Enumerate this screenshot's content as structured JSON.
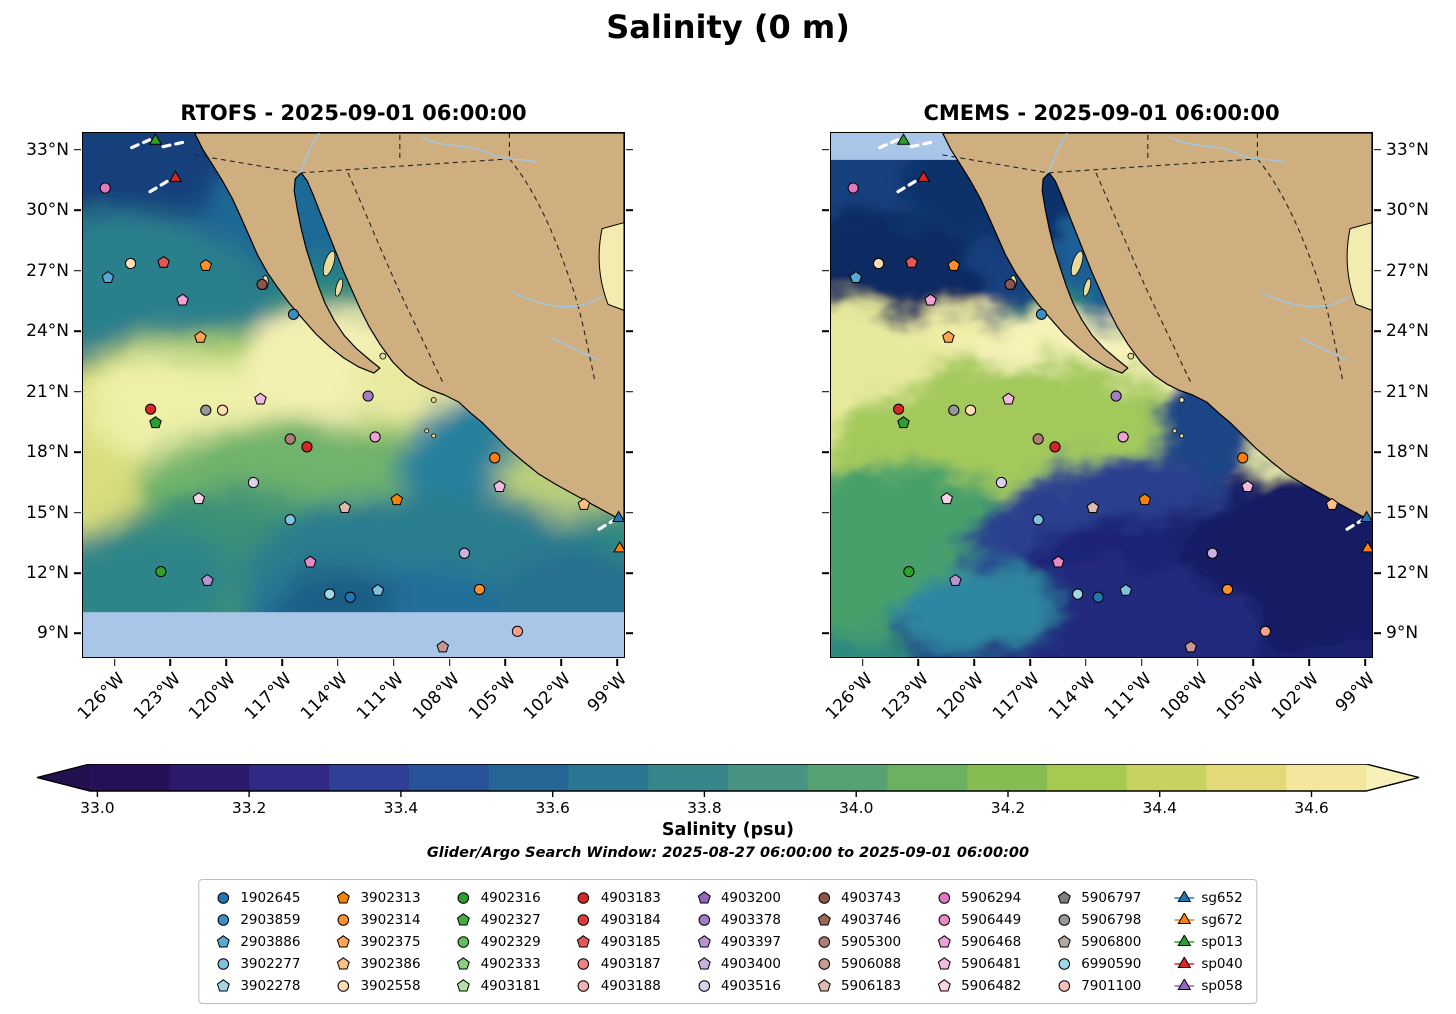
{
  "figure": {
    "title": "Salinity (0 m)"
  },
  "panels": [
    {
      "id": "rtofs",
      "title": "RTOFS - 2025-09-01 06:00:00",
      "lat_label_side": "left"
    },
    {
      "id": "cmems",
      "title": "CMEMS - 2025-09-01 06:00:00",
      "lat_label_side": "right"
    }
  ],
  "axes": {
    "lat_ticks": [
      "33°N",
      "30°N",
      "27°N",
      "24°N",
      "21°N",
      "18°N",
      "15°N",
      "12°N",
      "9°N"
    ],
    "lon_ticks": [
      "126°W",
      "123°W",
      "120°W",
      "117°W",
      "114°W",
      "111°W",
      "108°W",
      "105°W",
      "102°W",
      "99°W"
    ]
  },
  "colorbar": {
    "label": "Salinity (psu)",
    "ticks": [
      "33.0",
      "33.2",
      "33.4",
      "33.6",
      "33.8",
      "34.0",
      "34.2",
      "34.4",
      "34.6"
    ],
    "colors": [
      "#261158",
      "#2c1a6e",
      "#312a84",
      "#2f3e96",
      "#28539b",
      "#266697",
      "#2b7793",
      "#37868c",
      "#469481",
      "#57a273",
      "#6cb062",
      "#86bd53",
      "#a6c94f",
      "#c7d25f",
      "#e2da78",
      "#f2e79c"
    ],
    "tip_left": "#23104f",
    "tip_right": "#f7f0b8"
  },
  "search_window": "Glider/Argo Search Window: 2025-08-27 06:00:00 to 2025-09-01 06:00:00",
  "chart_data": {
    "type": "heatmap",
    "title": "Salinity (0 m)",
    "variable": "Salinity (psu)",
    "panels": [
      "RTOFS - 2025-09-01 06:00:00",
      "CMEMS - 2025-09-01 06:00:00"
    ],
    "lon_ticks_deg_w": [
      126,
      123,
      120,
      117,
      114,
      111,
      108,
      105,
      102,
      99
    ],
    "lat_ticks_deg_n": [
      33,
      30,
      27,
      24,
      21,
      18,
      15,
      12,
      9
    ],
    "colorbar_ticks": [
      33.0,
      33.2,
      33.4,
      33.6,
      33.8,
      34.0,
      34.2,
      34.4,
      34.6
    ],
    "colorbar_range_psu": [
      32.9,
      34.7
    ],
    "search_window": [
      "2025-08-27 06:00:00",
      "2025-09-01 06:00:00"
    ]
  },
  "legend": {
    "columns": [
      {
        "items": [
          {
            "label": "1902645",
            "shape": "circle",
            "color": "#1f77b4"
          },
          {
            "label": "2903859",
            "shape": "circle",
            "color": "#3a8ec6"
          },
          {
            "label": "2903886",
            "shape": "pentagon",
            "color": "#57a9d4"
          },
          {
            "label": "3902277",
            "shape": "circle",
            "color": "#7fc2e0"
          },
          {
            "label": "3902278",
            "shape": "pentagon",
            "color": "#a6d4ec"
          }
        ]
      },
      {
        "items": [
          {
            "label": "3902313",
            "shape": "pentagon",
            "color": "#f5820b"
          },
          {
            "label": "3902314",
            "shape": "circle",
            "color": "#ff8f2a"
          },
          {
            "label": "3902375",
            "shape": "pentagon",
            "color": "#ffa64d"
          },
          {
            "label": "3902386",
            "shape": "pentagon",
            "color": "#ffc083"
          },
          {
            "label": "3902558",
            "shape": "circle",
            "color": "#ffddb3"
          }
        ]
      },
      {
        "items": [
          {
            "label": "4902316",
            "shape": "circle",
            "color": "#2ca02c"
          },
          {
            "label": "4902327",
            "shape": "pentagon",
            "color": "#44ad42"
          },
          {
            "label": "4902329",
            "shape": "circle",
            "color": "#63bd5f"
          },
          {
            "label": "4902333",
            "shape": "pentagon",
            "color": "#8ccf7f"
          },
          {
            "label": "4903181",
            "shape": "pentagon",
            "color": "#b4e0a4"
          }
        ]
      },
      {
        "items": [
          {
            "label": "4903183",
            "shape": "circle",
            "color": "#d62728"
          },
          {
            "label": "4903184",
            "shape": "circle",
            "color": "#da3b3c"
          },
          {
            "label": "4903185",
            "shape": "pentagon",
            "color": "#e25859"
          },
          {
            "label": "4903187",
            "shape": "circle",
            "color": "#ec8384"
          },
          {
            "label": "4903188",
            "shape": "circle",
            "color": "#f5b0b0"
          }
        ]
      },
      {
        "items": [
          {
            "label": "4903200",
            "shape": "pentagon",
            "color": "#9467bd"
          },
          {
            "label": "4903378",
            "shape": "circle",
            "color": "#a37cc7"
          },
          {
            "label": "4903397",
            "shape": "pentagon",
            "color": "#b595d2"
          },
          {
            "label": "4903400",
            "shape": "pentagon",
            "color": "#c9b2df"
          },
          {
            "label": "4903516",
            "shape": "circle",
            "color": "#ddd0ec"
          }
        ]
      },
      {
        "items": [
          {
            "label": "4903743",
            "shape": "circle",
            "color": "#8c564b"
          },
          {
            "label": "4903746",
            "shape": "pentagon",
            "color": "#9b675b"
          },
          {
            "label": "5905300",
            "shape": "circle",
            "color": "#b07d72"
          },
          {
            "label": "5906088",
            "shape": "circle",
            "color": "#c79990"
          },
          {
            "label": "5906183",
            "shape": "pentagon",
            "color": "#ddbbb1"
          }
        ]
      },
      {
        "items": [
          {
            "label": "5906294",
            "shape": "circle",
            "color": "#e377c2"
          },
          {
            "label": "5906449",
            "shape": "circle",
            "color": "#e88aca"
          },
          {
            "label": "5906468",
            "shape": "pentagon",
            "color": "#efa2d4"
          },
          {
            "label": "5906481",
            "shape": "pentagon",
            "color": "#f4bade"
          },
          {
            "label": "5906482",
            "shape": "pentagon",
            "color": "#fad2e9"
          }
        ]
      },
      {
        "items": [
          {
            "label": "5906797",
            "shape": "pentagon",
            "color": "#7f7f7f"
          },
          {
            "label": "5906798",
            "shape": "circle",
            "color": "#979797"
          },
          {
            "label": "5906800",
            "shape": "pentagon",
            "color": "#b3aaa1"
          },
          {
            "label": "6990590",
            "shape": "circle",
            "color": "#9edae5"
          },
          {
            "label": "7901100",
            "shape": "circle",
            "color": "#f7c1bb"
          }
        ]
      },
      {
        "items": [
          {
            "label": "sg652",
            "shape": "triangle",
            "color": "#1f77b4",
            "glider": true
          },
          {
            "label": "sg672",
            "shape": "triangle",
            "color": "#ff7f0e",
            "glider": true
          },
          {
            "label": "sp013",
            "shape": "triangle",
            "color": "#2ca02c",
            "glider": true
          },
          {
            "label": "sp040",
            "shape": "triangle",
            "color": "#d62728",
            "glider": true
          },
          {
            "label": "sp058",
            "shape": "triangle",
            "color": "#9467bd",
            "glider": true
          }
        ]
      }
    ]
  },
  "map_markers": [
    {
      "x": 13.4,
      "y": 1.5,
      "shape": "triangle",
      "color": "#2ca02c"
    },
    {
      "x": 17.1,
      "y": 8.6,
      "shape": "triangle",
      "color": "#d62728"
    },
    {
      "x": 4.1,
      "y": 10.5,
      "shape": "circle",
      "color": "#e377c2"
    },
    {
      "x": 8.8,
      "y": 24.9,
      "shape": "circle",
      "color": "#ffddb3"
    },
    {
      "x": 14.9,
      "y": 24.7,
      "shape": "pentagon",
      "color": "#e25859"
    },
    {
      "x": 22.7,
      "y": 25.3,
      "shape": "pentagon",
      "color": "#ff8f2a"
    },
    {
      "x": 4.6,
      "y": 27.6,
      "shape": "pentagon",
      "color": "#57a9d4"
    },
    {
      "x": 33.1,
      "y": 28.9,
      "shape": "circle",
      "color": "#8c564b"
    },
    {
      "x": 18.4,
      "y": 31.9,
      "shape": "pentagon",
      "color": "#efa2d4"
    },
    {
      "x": 38.9,
      "y": 34.6,
      "shape": "circle",
      "color": "#3a8ec6"
    },
    {
      "x": 21.7,
      "y": 39.0,
      "shape": "pentagon",
      "color": "#ffa64d"
    },
    {
      "x": 32.8,
      "y": 50.8,
      "shape": "pentagon",
      "color": "#f4bade"
    },
    {
      "x": 12.5,
      "y": 52.7,
      "shape": "circle",
      "color": "#d62728"
    },
    {
      "x": 22.7,
      "y": 52.9,
      "shape": "circle",
      "color": "#979797"
    },
    {
      "x": 25.8,
      "y": 52.9,
      "shape": "circle",
      "color": "#ffddb3"
    },
    {
      "x": 13.4,
      "y": 55.3,
      "shape": "pentagon",
      "color": "#2ca02c"
    },
    {
      "x": 52.7,
      "y": 50.2,
      "shape": "circle",
      "color": "#a37cc7"
    },
    {
      "x": 38.3,
      "y": 58.4,
      "shape": "circle",
      "color": "#b07d72"
    },
    {
      "x": 41.4,
      "y": 59.9,
      "shape": "circle",
      "color": "#d62728"
    },
    {
      "x": 54.0,
      "y": 58.0,
      "shape": "circle",
      "color": "#efa2d4"
    },
    {
      "x": 76.1,
      "y": 62.0,
      "shape": "circle",
      "color": "#ff7f0e"
    },
    {
      "x": 77.0,
      "y": 67.5,
      "shape": "pentagon",
      "color": "#f4bade"
    },
    {
      "x": 31.5,
      "y": 66.7,
      "shape": "circle",
      "color": "#ddd0ec"
    },
    {
      "x": 58.0,
      "y": 70.0,
      "shape": "pentagon",
      "color": "#f5820b"
    },
    {
      "x": 21.4,
      "y": 69.8,
      "shape": "pentagon",
      "color": "#fad2e9"
    },
    {
      "x": 38.3,
      "y": 73.8,
      "shape": "circle",
      "color": "#7fc2e0"
    },
    {
      "x": 48.4,
      "y": 71.5,
      "shape": "pentagon",
      "color": "#ddbbb1"
    },
    {
      "x": 92.6,
      "y": 70.9,
      "shape": "pentagon",
      "color": "#ffc083"
    },
    {
      "x": 70.5,
      "y": 80.2,
      "shape": "circle",
      "color": "#c9b2df"
    },
    {
      "x": 42.0,
      "y": 81.9,
      "shape": "pentagon",
      "color": "#e88aca"
    },
    {
      "x": 14.4,
      "y": 83.7,
      "shape": "circle",
      "color": "#2ca02c"
    },
    {
      "x": 23.0,
      "y": 85.4,
      "shape": "pentagon",
      "color": "#b595d2"
    },
    {
      "x": 49.4,
      "y": 88.6,
      "shape": "circle",
      "color": "#1f77b4"
    },
    {
      "x": 45.6,
      "y": 88.0,
      "shape": "circle",
      "color": "#9edae5"
    },
    {
      "x": 54.5,
      "y": 87.3,
      "shape": "pentagon",
      "color": "#7fc2e0"
    },
    {
      "x": 73.3,
      "y": 87.1,
      "shape": "circle",
      "color": "#ff8f2a"
    },
    {
      "x": 80.3,
      "y": 95.1,
      "shape": "circle",
      "color": "#f7a08c"
    },
    {
      "x": 66.5,
      "y": 98.1,
      "shape": "pentagon",
      "color": "#c79990"
    },
    {
      "x": 99.0,
      "y": 73.5,
      "shape": "triangle",
      "color": "#1f77b4"
    },
    {
      "x": 99.2,
      "y": 79.3,
      "shape": "triangle",
      "color": "#ff7f0e"
    }
  ],
  "glider_tracks": [
    [
      [
        9.0,
        2.8
      ],
      [
        12.3,
        1.3
      ]
    ],
    [
      [
        14.8,
        2.6
      ],
      [
        19.3,
        1.6
      ]
    ],
    [
      [
        12.4,
        11.2
      ],
      [
        16.4,
        8.7
      ]
    ],
    [
      [
        95.4,
        75.6
      ],
      [
        99.4,
        73.1
      ]
    ]
  ]
}
